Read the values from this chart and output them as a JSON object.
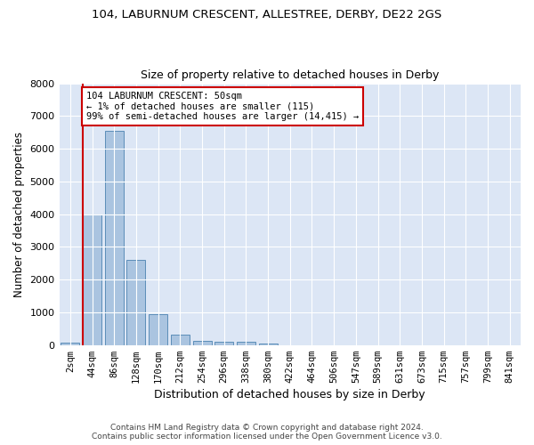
{
  "title": "104, LABURNUM CRESCENT, ALLESTREE, DERBY, DE22 2GS",
  "subtitle": "Size of property relative to detached houses in Derby",
  "xlabel": "Distribution of detached houses by size in Derby",
  "ylabel": "Number of detached properties",
  "footer_line1": "Contains HM Land Registry data © Crown copyright and database right 2024.",
  "footer_line2": "Contains public sector information licensed under the Open Government Licence v3.0.",
  "annotation_line1": "104 LABURNUM CRESCENT: 50sqm",
  "annotation_line2": "← 1% of detached houses are smaller (115)",
  "annotation_line3": "99% of semi-detached houses are larger (14,415) →",
  "bar_categories": [
    "2sqm",
    "44sqm",
    "86sqm",
    "128sqm",
    "170sqm",
    "212sqm",
    "254sqm",
    "296sqm",
    "338sqm",
    "380sqm",
    "422sqm",
    "464sqm",
    "506sqm",
    "547sqm",
    "589sqm",
    "631sqm",
    "673sqm",
    "715sqm",
    "757sqm",
    "799sqm",
    "841sqm"
  ],
  "bar_values": [
    75,
    4000,
    6550,
    2600,
    950,
    310,
    130,
    110,
    90,
    55,
    0,
    0,
    0,
    0,
    0,
    0,
    0,
    0,
    0,
    0,
    0
  ],
  "bar_color": "#aac4e0",
  "bar_edge_color": "#5b8db8",
  "marker_line_color": "#cc0000",
  "annotation_box_color": "#cc0000",
  "background_color": "#dce6f5",
  "ylim": [
    0,
    8000
  ],
  "yticks": [
    0,
    1000,
    2000,
    3000,
    4000,
    5000,
    6000,
    7000,
    8000
  ]
}
